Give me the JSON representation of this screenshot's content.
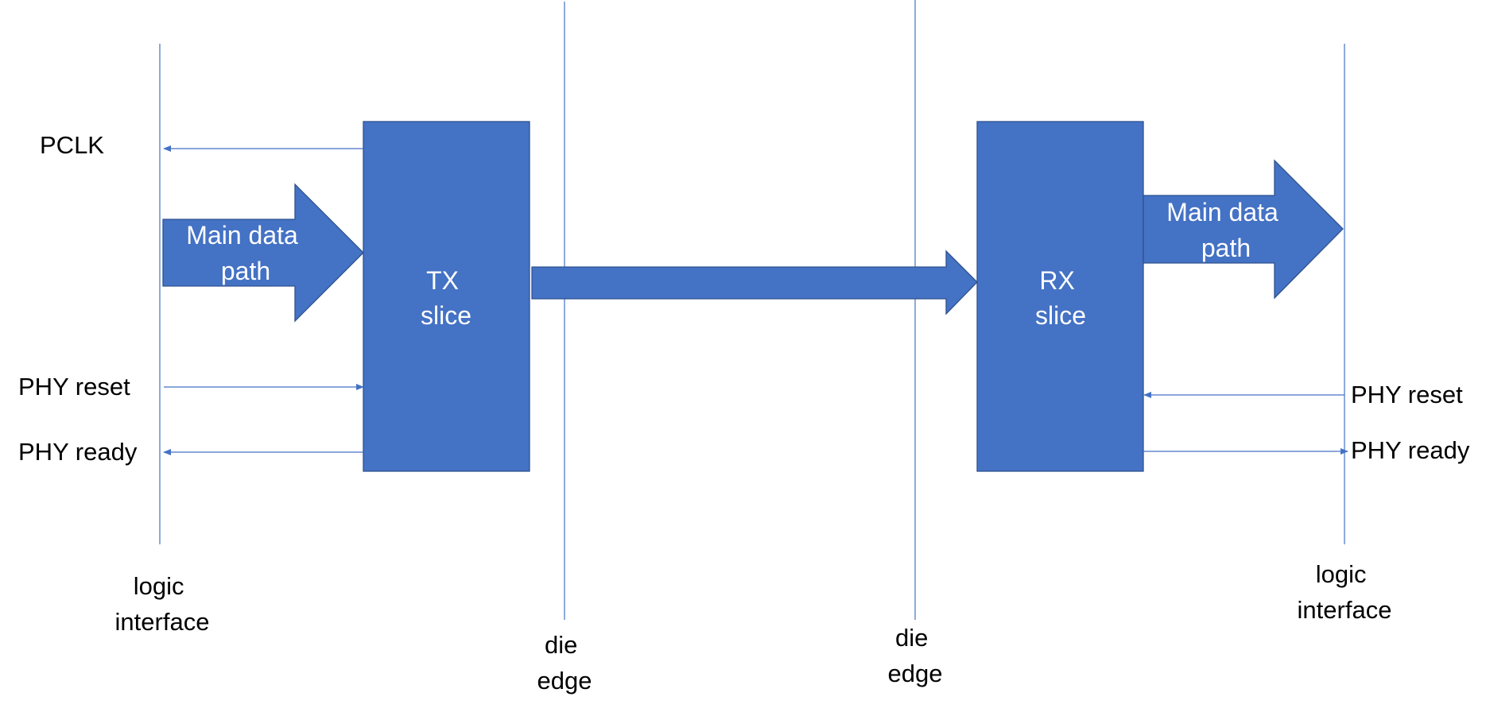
{
  "colors": {
    "fill": "#4472c4",
    "outline": "#2f528f",
    "line": "#4472c4",
    "text": "#000000",
    "inner_text": "#ffffff"
  },
  "left": {
    "pclk": "PCLK",
    "main_data_path": [
      "Main data",
      "path"
    ],
    "phy_reset": "PHY reset",
    "phy_ready": "PHY ready",
    "logic_interface": [
      "logic",
      "interface"
    ]
  },
  "tx_slice": [
    "TX",
    "slice"
  ],
  "rx_slice": [
    "RX",
    "slice"
  ],
  "die_edge_left": [
    "die",
    "edge"
  ],
  "die_edge_right": [
    "die",
    "edge"
  ],
  "right": {
    "main_data_path": [
      "Main data",
      "path"
    ],
    "phy_reset": "PHY reset",
    "phy_ready": "PHY ready",
    "logic_interface": [
      "logic",
      "interface"
    ]
  }
}
